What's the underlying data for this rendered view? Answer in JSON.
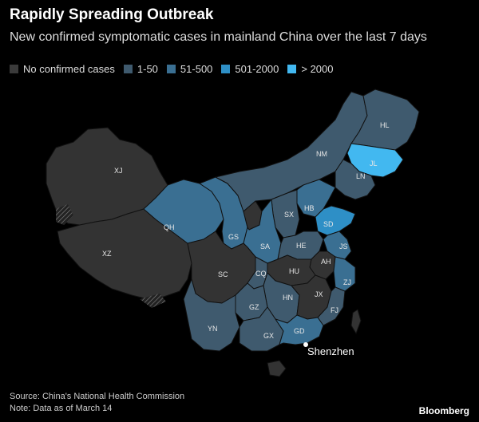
{
  "header": {
    "title": "Rapidly Spreading Outbreak",
    "subtitle": "New confirmed symptomatic cases in mainland China over the last 7 days"
  },
  "legend": [
    {
      "label": "No confirmed cases",
      "color": "#3a3a3a"
    },
    {
      "label": "1-50",
      "color": "#3f5a6e"
    },
    {
      "label": "51-500",
      "color": "#3a6f92"
    },
    {
      "label": "501-2000",
      "color": "#2e8fc6"
    },
    {
      "label": "> 2000",
      "color": "#42b8f0"
    }
  ],
  "colors": {
    "none": "#333333",
    "c1_50": "#3f5a6e",
    "c51_500": "#3a6f92",
    "c501_2000": "#2e8fc6",
    "c2000": "#42b8f0"
  },
  "provinces": {
    "XJ": "XJ",
    "XZ": "XZ",
    "QH": "QH",
    "GS": "GS",
    "NM": "NM",
    "HL": "HL",
    "JL": "JL",
    "LN": "LN",
    "HB": "HB",
    "SX": "SX",
    "SD": "SD",
    "HE": "HE",
    "SA": "SA",
    "JS": "JS",
    "AH": "AH",
    "SC": "SC",
    "HU": "HU",
    "ZJ": "ZJ",
    "CQ": "CQ",
    "GZ": "GZ",
    "HN": "HN",
    "JX": "JX",
    "FJ": "FJ",
    "YN": "YN",
    "GX": "GX",
    "GD": "GD"
  },
  "city": "Shenzhen",
  "footer": {
    "source": "Source: China's National Health Commission",
    "note": "Note: Data as of March 14"
  },
  "brand": "Bloomberg"
}
